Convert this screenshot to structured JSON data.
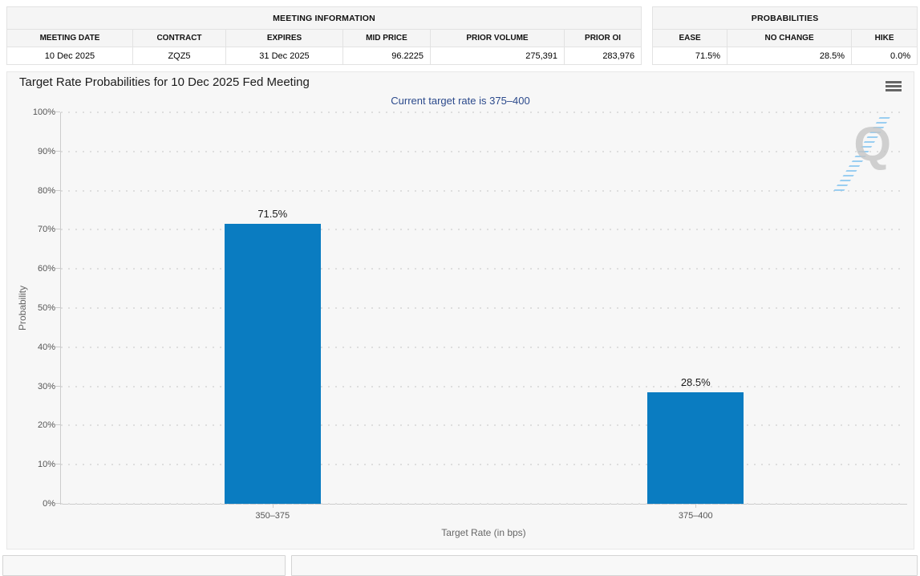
{
  "meeting_information": {
    "title": "MEETING INFORMATION",
    "columns": [
      "MEETING DATE",
      "CONTRACT",
      "EXPIRES",
      "MID PRICE",
      "PRIOR VOLUME",
      "PRIOR OI"
    ],
    "row": [
      "10 Dec 2025",
      "ZQZ5",
      "31 Dec 2025",
      "96.2225",
      "275,391",
      "283,976"
    ]
  },
  "probabilities": {
    "title": "PROBABILITIES",
    "columns": [
      "EASE",
      "NO CHANGE",
      "HIKE"
    ],
    "row": [
      "71.5%",
      "28.5%",
      "0.0%"
    ]
  },
  "chart_data": {
    "type": "bar",
    "title": "Target Rate Probabilities for 10 Dec 2025 Fed Meeting",
    "subtitle": "Current target rate is 375–400",
    "categories": [
      "350–375",
      "375–400"
    ],
    "values": [
      71.5,
      28.5
    ],
    "data_labels": [
      "71.5%",
      "28.5%"
    ],
    "xlabel": "Target Rate (in bps)",
    "ylabel": "Probability",
    "ylim": [
      0,
      100
    ],
    "yticks": [
      "0%",
      "10%",
      "20%",
      "30%",
      "40%",
      "50%",
      "60%",
      "70%",
      "80%",
      "90%",
      "100%"
    ],
    "grid": "horizontal-dotted",
    "legend": "none",
    "bar_color": "#0a7cc1",
    "subtitle_color": "#2c4a8c",
    "watermark_letter": "Q"
  },
  "icons": {
    "export_menu": "hamburger-icon"
  }
}
